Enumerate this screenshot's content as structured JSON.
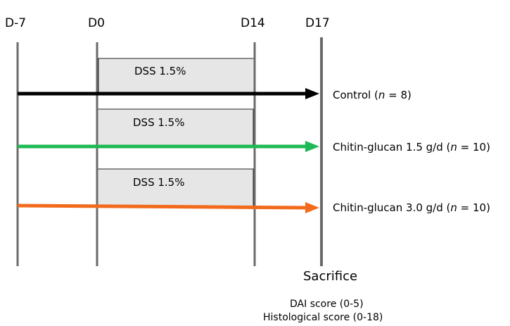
{
  "timeline": {
    "days": [
      {
        "label": "D-7"
      },
      {
        "label": "D0"
      },
      {
        "label": "D14"
      },
      {
        "label": "D17"
      }
    ]
  },
  "groups": [
    {
      "treatment": "DSS 1.5%",
      "label_prefix": "Control (",
      "n_symbol": "n",
      "label_suffix": " = 8)",
      "color": "#000000"
    },
    {
      "treatment": "DSS 1.5%",
      "label_prefix": "Chitin-glucan 1.5 g/d (",
      "n_symbol": "n",
      "label_suffix": " = 10)",
      "color": "#1db954"
    },
    {
      "treatment": "DSS 1.5%",
      "label_prefix": "Chitin-glucan 3.0 g/d (",
      "n_symbol": "n",
      "label_suffix": " = 10)",
      "color": "#f26b1d"
    }
  ],
  "endpoint": {
    "title": "Sacrifice",
    "scores": [
      "DAI score (0-5)",
      "Histological score (0-18)"
    ]
  },
  "colors": {
    "timeline_line": "#6b6b6b",
    "box_fill": "#e6e6e6",
    "box_border": "#222222"
  }
}
